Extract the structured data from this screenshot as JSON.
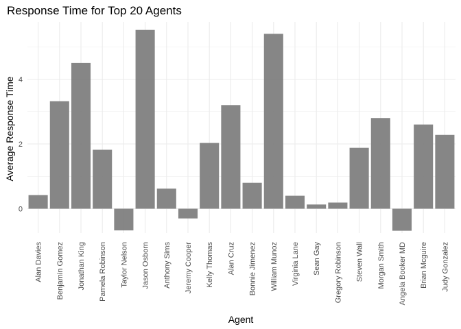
{
  "chart_data": {
    "type": "bar",
    "title": "Response Time for Top 20 Agents",
    "xlabel": "Agent",
    "ylabel": "Average Response Time",
    "categories": [
      "Alan Davies",
      "Benjamin Gomez",
      "Jonathan King",
      "Pamela Robinson",
      "Taylor Nelson",
      "Jason Osborn",
      "Anthony Sims",
      "Jeremy Cooper",
      "Kelly Thomas",
      "Alan Cruz",
      "Bonnie Jimenez",
      "William Munoz",
      "Virginia Lane",
      "Sean Gay",
      "Gregory Robinson",
      "Steven Wall",
      "Morgan Smith",
      "Angela Booker MD",
      "Brian Mcguire",
      "Judy Gonzalez"
    ],
    "values": [
      0.42,
      3.32,
      4.5,
      1.82,
      -0.67,
      5.52,
      0.62,
      -0.3,
      2.03,
      3.2,
      0.8,
      5.4,
      0.4,
      0.13,
      0.19,
      1.88,
      2.8,
      -0.68,
      2.6,
      2.28
    ],
    "yticks": [
      0,
      2,
      4
    ],
    "ylim": [
      -1.0,
      5.75
    ],
    "grid": true,
    "bar_color": "#7f7f7f",
    "grid_color": "#ebebeb"
  }
}
